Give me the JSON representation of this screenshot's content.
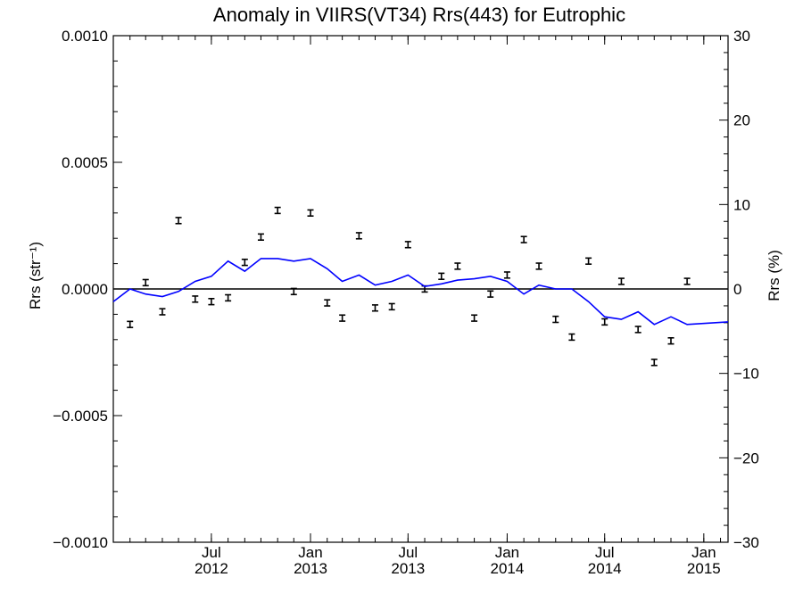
{
  "chart_data": {
    "type": "line",
    "title": "Anomaly in VIIRS(VT34) Rrs(443) for Eutrophic",
    "ylabel_left": "Rrs (str⁻¹)",
    "ylabel_right": "Rrs (%)",
    "x_range": [
      "2012-01-01",
      "2015-02-15"
    ],
    "ylim_left": [
      -0.001,
      0.001
    ],
    "ylim_right": [
      -30,
      30
    ],
    "left_ticks": [
      {
        "value": 0.001,
        "label": "0.0010"
      },
      {
        "value": 0.0005,
        "label": "0.0005"
      },
      {
        "value": 0.0,
        "label": "0.0000"
      },
      {
        "value": -0.0005,
        "label": "−0.0005"
      },
      {
        "value": -0.001,
        "label": "−0.0010"
      }
    ],
    "right_ticks": [
      {
        "value": 30,
        "label": "30"
      },
      {
        "value": 20,
        "label": "20"
      },
      {
        "value": 10,
        "label": "10"
      },
      {
        "value": 0,
        "label": "0"
      },
      {
        "value": -10,
        "label": "−10"
      },
      {
        "value": -20,
        "label": "−20"
      },
      {
        "value": -30,
        "label": "−30"
      }
    ],
    "x_ticks": [
      {
        "date": "2012-07-01",
        "month": "Jul",
        "year": "2012"
      },
      {
        "date": "2013-01-01",
        "month": "Jan",
        "year": "2013"
      },
      {
        "date": "2013-07-01",
        "month": "Jul",
        "year": "2013"
      },
      {
        "date": "2014-01-01",
        "month": "Jan",
        "year": "2014"
      },
      {
        "date": "2014-07-01",
        "month": "Jul",
        "year": "2014"
      },
      {
        "date": "2015-01-01",
        "month": "Jan",
        "year": "2015"
      }
    ],
    "reference_line": {
      "value": 0.0,
      "color": "#000000"
    },
    "series": [
      {
        "marker": "error-bar",
        "axis": "left",
        "color": "#000000",
        "points": [
          {
            "x": "2012-02-01",
            "y": -0.00014,
            "err": 1.2e-05
          },
          {
            "x": "2012-03-01",
            "y": 2.5e-05,
            "err": 1.2e-05
          },
          {
            "x": "2012-04-01",
            "y": -9e-05,
            "err": 1.2e-05
          },
          {
            "x": "2012-05-01",
            "y": 0.00027,
            "err": 1.2e-05
          },
          {
            "x": "2012-06-01",
            "y": -4e-05,
            "err": 1.2e-05
          },
          {
            "x": "2012-07-01",
            "y": -5e-05,
            "err": 1.2e-05
          },
          {
            "x": "2012-08-01",
            "y": -3.5e-05,
            "err": 1.2e-05
          },
          {
            "x": "2012-09-01",
            "y": 0.000105,
            "err": 1.2e-05
          },
          {
            "x": "2012-10-01",
            "y": 0.000205,
            "err": 1.2e-05
          },
          {
            "x": "2012-11-01",
            "y": 0.00031,
            "err": 1.2e-05
          },
          {
            "x": "2012-12-01",
            "y": -1e-05,
            "err": 1.2e-05
          },
          {
            "x": "2013-01-01",
            "y": 0.0003,
            "err": 1.2e-05
          },
          {
            "x": "2013-02-01",
            "y": -5.5e-05,
            "err": 1.2e-05
          },
          {
            "x": "2013-03-01",
            "y": -0.000115,
            "err": 1.2e-05
          },
          {
            "x": "2013-04-01",
            "y": 0.00021,
            "err": 1.2e-05
          },
          {
            "x": "2013-05-01",
            "y": -7.5e-05,
            "err": 1.2e-05
          },
          {
            "x": "2013-06-01",
            "y": -7e-05,
            "err": 1.2e-05
          },
          {
            "x": "2013-07-01",
            "y": 0.000175,
            "err": 1.2e-05
          },
          {
            "x": "2013-08-01",
            "y": 0.0,
            "err": 1.2e-05
          },
          {
            "x": "2013-09-01",
            "y": 5e-05,
            "err": 1.2e-05
          },
          {
            "x": "2013-10-01",
            "y": 9e-05,
            "err": 1.2e-05
          },
          {
            "x": "2013-11-01",
            "y": -0.000115,
            "err": 1.2e-05
          },
          {
            "x": "2013-12-01",
            "y": -2e-05,
            "err": 1.2e-05
          },
          {
            "x": "2014-01-01",
            "y": 5.5e-05,
            "err": 1.2e-05
          },
          {
            "x": "2014-02-01",
            "y": 0.000195,
            "err": 1.2e-05
          },
          {
            "x": "2014-03-01",
            "y": 9e-05,
            "err": 1.2e-05
          },
          {
            "x": "2014-04-01",
            "y": -0.00012,
            "err": 1.2e-05
          },
          {
            "x": "2014-05-01",
            "y": -0.00019,
            "err": 1.2e-05
          },
          {
            "x": "2014-06-01",
            "y": 0.00011,
            "err": 1.2e-05
          },
          {
            "x": "2014-07-01",
            "y": -0.00013,
            "err": 1.2e-05
          },
          {
            "x": "2014-08-01",
            "y": 3e-05,
            "err": 1.2e-05
          },
          {
            "x": "2014-09-01",
            "y": -0.00016,
            "err": 1.2e-05
          },
          {
            "x": "2014-10-01",
            "y": -0.00029,
            "err": 1.2e-05
          },
          {
            "x": "2014-11-01",
            "y": -0.000205,
            "err": 1.2e-05
          },
          {
            "x": "2014-12-01",
            "y": 3e-05,
            "err": 1.2e-05
          }
        ]
      },
      {
        "marker": "line",
        "axis": "left",
        "color": "#0000ff",
        "points": [
          {
            "x": "2012-01-01",
            "y": -5e-05
          },
          {
            "x": "2012-02-01",
            "y": 0.0
          },
          {
            "x": "2012-03-01",
            "y": -2e-05
          },
          {
            "x": "2012-04-01",
            "y": -3e-05
          },
          {
            "x": "2012-05-01",
            "y": -1e-05
          },
          {
            "x": "2012-06-01",
            "y": 3e-05
          },
          {
            "x": "2012-07-01",
            "y": 5e-05
          },
          {
            "x": "2012-08-01",
            "y": 0.00011
          },
          {
            "x": "2012-09-01",
            "y": 7e-05
          },
          {
            "x": "2012-10-01",
            "y": 0.00012
          },
          {
            "x": "2012-11-01",
            "y": 0.00012
          },
          {
            "x": "2012-12-01",
            "y": 0.00011
          },
          {
            "x": "2013-01-01",
            "y": 0.00012
          },
          {
            "x": "2013-02-01",
            "y": 8e-05
          },
          {
            "x": "2013-03-01",
            "y": 3e-05
          },
          {
            "x": "2013-04-01",
            "y": 5.5e-05
          },
          {
            "x": "2013-05-01",
            "y": 1.5e-05
          },
          {
            "x": "2013-06-01",
            "y": 3e-05
          },
          {
            "x": "2013-07-01",
            "y": 5.5e-05
          },
          {
            "x": "2013-08-01",
            "y": 1e-05
          },
          {
            "x": "2013-09-01",
            "y": 2e-05
          },
          {
            "x": "2013-10-01",
            "y": 3.5e-05
          },
          {
            "x": "2013-11-01",
            "y": 4e-05
          },
          {
            "x": "2013-12-01",
            "y": 5e-05
          },
          {
            "x": "2014-01-01",
            "y": 3e-05
          },
          {
            "x": "2014-02-01",
            "y": -2e-05
          },
          {
            "x": "2014-03-01",
            "y": 1.5e-05
          },
          {
            "x": "2014-04-01",
            "y": 0.0
          },
          {
            "x": "2014-05-01",
            "y": 0.0
          },
          {
            "x": "2014-06-01",
            "y": -5e-05
          },
          {
            "x": "2014-07-01",
            "y": -0.00011
          },
          {
            "x": "2014-08-01",
            "y": -0.00012
          },
          {
            "x": "2014-09-01",
            "y": -9e-05
          },
          {
            "x": "2014-10-01",
            "y": -0.00014
          },
          {
            "x": "2014-11-01",
            "y": -0.00011
          },
          {
            "x": "2014-12-01",
            "y": -0.00014
          },
          {
            "x": "2015-02-15",
            "y": -0.00013
          }
        ]
      }
    ]
  }
}
